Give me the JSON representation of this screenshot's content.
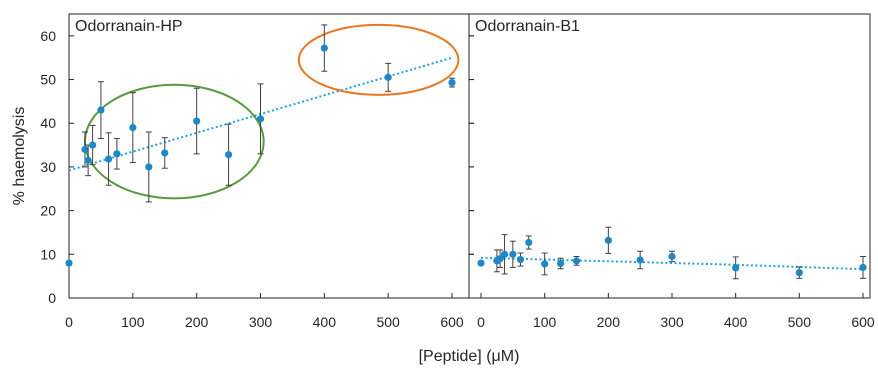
{
  "chart_data": {
    "type": "scatter",
    "ylabel": "% haemolysis",
    "xlabel": "[Peptide] (μM)",
    "ylim": [
      0,
      65
    ],
    "xlim": [
      0,
      620
    ],
    "yticks": [
      0,
      10,
      20,
      30,
      40,
      50,
      60
    ],
    "xticks": [
      0,
      100,
      200,
      300,
      400,
      500,
      600
    ],
    "grid": false,
    "colors": {
      "points": "#1f86c8",
      "error_bars": "#404040",
      "trendline": "#1fa3dd",
      "green_ellipse": "#5a9a3c",
      "orange_ellipse": "#e87722"
    },
    "panels": [
      {
        "title": "Odorranain-HP",
        "series": [
          {
            "x": [
              0,
              25,
              30,
              37,
              50,
              62,
              75,
              100,
              125,
              150,
              200,
              250,
              300,
              400,
              500,
              600
            ],
            "y": [
              8.0,
              34.0,
              31.5,
              35.0,
              43.0,
              31.8,
              33.0,
              39.0,
              30.0,
              33.2,
              40.5,
              32.8,
              41.0,
              57.2,
              50.5,
              49.3
            ],
            "error": [
              0,
              4.0,
              3.5,
              4.5,
              6.5,
              6.0,
              3.5,
              8.0,
              8.0,
              3.5,
              7.5,
              7.0,
              8.0,
              5.3,
              3.2,
              1.0
            ]
          }
        ],
        "trendline": {
          "type": "linear",
          "x": [
            0,
            600
          ],
          "y": [
            29.2,
            55.0
          ]
        },
        "highlights": [
          {
            "color": "green",
            "center": [
              165,
              35.8
            ],
            "radius": [
              140,
              13
            ]
          },
          {
            "color": "orange",
            "center": [
              485,
              54.5
            ],
            "radius": [
              125,
              8
            ]
          }
        ]
      },
      {
        "title": "Odorranain-B1",
        "series": [
          {
            "x": [
              0,
              25,
              30,
              37,
              50,
              62,
              75,
              100,
              125,
              150,
              200,
              250,
              300,
              400,
              500,
              600
            ],
            "y": [
              8.0,
              8.5,
              9.0,
              10.0,
              10.0,
              8.8,
              12.7,
              7.8,
              7.9,
              8.5,
              13.2,
              8.7,
              9.5,
              6.9,
              5.8,
              7.0
            ],
            "error": [
              0,
              2.5,
              2.0,
              4.5,
              3.0,
              1.5,
              1.5,
              2.5,
              1.2,
              1.0,
              3.0,
              2.0,
              1.2,
              2.5,
              1.3,
              2.5
            ]
          }
        ],
        "trendline": {
          "type": "polynomial",
          "x": [
            0,
            100,
            200,
            300,
            400,
            500,
            600
          ],
          "y": [
            9.2,
            8.8,
            8.4,
            8.0,
            7.6,
            7.1,
            6.6
          ]
        }
      }
    ]
  }
}
